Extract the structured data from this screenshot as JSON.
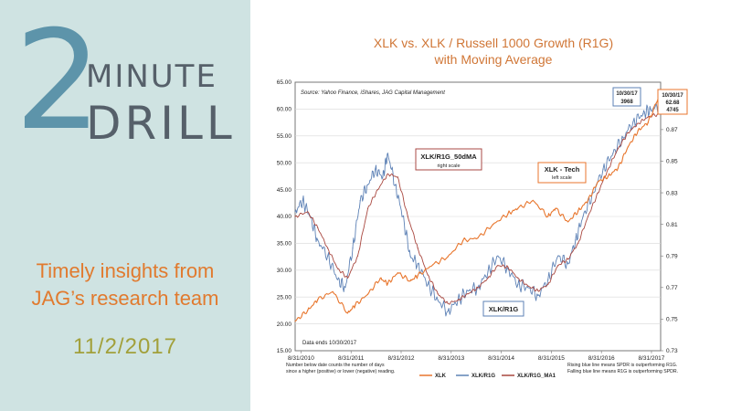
{
  "brand": {
    "number": "2",
    "word1": "MINUTE",
    "word2": "DRILL",
    "tagline_line1": "Timely insights from",
    "tagline_line2": "JAG’s research team",
    "date": "11/2/2017"
  },
  "chart_data": {
    "type": "line",
    "title_line1": "XLK vs. XLK / Russell 1000 Growth (R1G)",
    "title_line2": "with Moving Average",
    "source": "Source: Yahoo Finance, iShares, JAG Capital Management",
    "date_note": "Data ends 10/30/2017",
    "footnote_left": [
      "Number below date counts the number of days",
      "since a higher (positive) or lower (negative) reading."
    ],
    "footnote_right": [
      "Rising blue line means SPDR is outperforming R1G.",
      "Falling blue line means R1G is outperforming SPDR."
    ],
    "x_tick_labels": [
      "8/31/2010",
      "8/31/2011",
      "8/31/2012",
      "8/31/2013",
      "8/31/2014",
      "8/31/2015",
      "8/31/2016",
      "8/31/2017"
    ],
    "x_range": [
      2010.55,
      2017.85
    ],
    "left_axis": {
      "ticks": [
        "15.00",
        "20.00",
        "25.00",
        "30.00",
        "35.00",
        "40.00",
        "45.00",
        "50.00",
        "55.00",
        "60.00",
        "65.00"
      ],
      "range": [
        15,
        65
      ]
    },
    "right_axis": {
      "ticks": [
        "0.73",
        "0.75",
        "0.77",
        "0.79",
        "0.81",
        "0.83",
        "0.85",
        "0.87",
        "0.89"
      ],
      "range": [
        0.73,
        0.9
      ]
    },
    "annotations": {
      "ma_label": "XLK/R1G_50dMA",
      "ma_sub": "right scale",
      "xlk_label": "XLK - Tech",
      "xlk_sub": "left scale",
      "ratio_label": "XLK/R1G",
      "box1": [
        "10/30/17",
        "3968"
      ],
      "box2": [
        "10/30/17",
        "62.68",
        "4745"
      ]
    },
    "series": [
      {
        "name": "XLK",
        "axis": "left",
        "color": "#e8762d",
        "x": [
          2010.55,
          2010.8,
          2011.0,
          2011.3,
          2011.6,
          2011.75,
          2012.0,
          2012.25,
          2012.4,
          2012.6,
          2012.85,
          2013.0,
          2013.3,
          2013.6,
          2013.9,
          2014.2,
          2014.5,
          2014.8,
          2015.0,
          2015.3,
          2015.6,
          2015.75,
          2016.0,
          2016.2,
          2016.4,
          2016.6,
          2016.8,
          2017.0,
          2017.2,
          2017.4,
          2017.6,
          2017.83
        ],
        "values": [
          20.5,
          22.5,
          24.5,
          26.0,
          22.0,
          23.5,
          25.5,
          28.5,
          27.5,
          29.5,
          28.0,
          29.0,
          31.0,
          32.5,
          35.5,
          36.0,
          38.5,
          40.5,
          41.5,
          43.0,
          40.0,
          41.5,
          39.0,
          41.0,
          43.0,
          46.5,
          47.5,
          49.0,
          53.0,
          56.0,
          57.5,
          62.68
        ]
      },
      {
        "name": "XLK/R1G",
        "axis": "right",
        "color": "#5e82b6",
        "x": [
          2010.55,
          2010.7,
          2010.85,
          2011.0,
          2011.2,
          2011.4,
          2011.55,
          2011.7,
          2011.85,
          2012.0,
          2012.15,
          2012.3,
          2012.4,
          2012.55,
          2012.7,
          2012.85,
          2013.0,
          2013.2,
          2013.4,
          2013.6,
          2013.8,
          2014.0,
          2014.2,
          2014.4,
          2014.6,
          2014.8,
          2015.0,
          2015.2,
          2015.4,
          2015.6,
          2015.8,
          2016.0,
          2016.15,
          2016.3,
          2016.5,
          2016.7,
          2016.9,
          2017.1,
          2017.3,
          2017.5,
          2017.65,
          2017.83
        ],
        "values": [
          0.818,
          0.825,
          0.815,
          0.8,
          0.79,
          0.775,
          0.77,
          0.795,
          0.825,
          0.835,
          0.845,
          0.84,
          0.855,
          0.835,
          0.815,
          0.79,
          0.785,
          0.772,
          0.762,
          0.755,
          0.762,
          0.768,
          0.77,
          0.78,
          0.79,
          0.782,
          0.772,
          0.77,
          0.765,
          0.775,
          0.79,
          0.785,
          0.8,
          0.815,
          0.83,
          0.845,
          0.855,
          0.865,
          0.875,
          0.88,
          0.883,
          0.885
        ]
      },
      {
        "name": "XLK/R1G_MA1",
        "axis": "right",
        "color": "#a9473f",
        "x": [
          2010.55,
          2010.8,
          2011.0,
          2011.2,
          2011.4,
          2011.6,
          2011.8,
          2012.0,
          2012.2,
          2012.4,
          2012.6,
          2012.8,
          2013.0,
          2013.2,
          2013.4,
          2013.6,
          2013.8,
          2014.0,
          2014.2,
          2014.4,
          2014.6,
          2014.8,
          2015.0,
          2015.2,
          2015.4,
          2015.6,
          2015.8,
          2016.0,
          2016.2,
          2016.4,
          2016.6,
          2016.8,
          2017.0,
          2017.2,
          2017.4,
          2017.6,
          2017.83
        ],
        "values": [
          0.815,
          0.818,
          0.808,
          0.795,
          0.782,
          0.776,
          0.79,
          0.82,
          0.832,
          0.842,
          0.84,
          0.815,
          0.795,
          0.778,
          0.766,
          0.76,
          0.762,
          0.766,
          0.77,
          0.776,
          0.784,
          0.783,
          0.776,
          0.771,
          0.768,
          0.772,
          0.784,
          0.788,
          0.798,
          0.815,
          0.83,
          0.845,
          0.858,
          0.868,
          0.874,
          0.878,
          0.88
        ]
      }
    ]
  }
}
